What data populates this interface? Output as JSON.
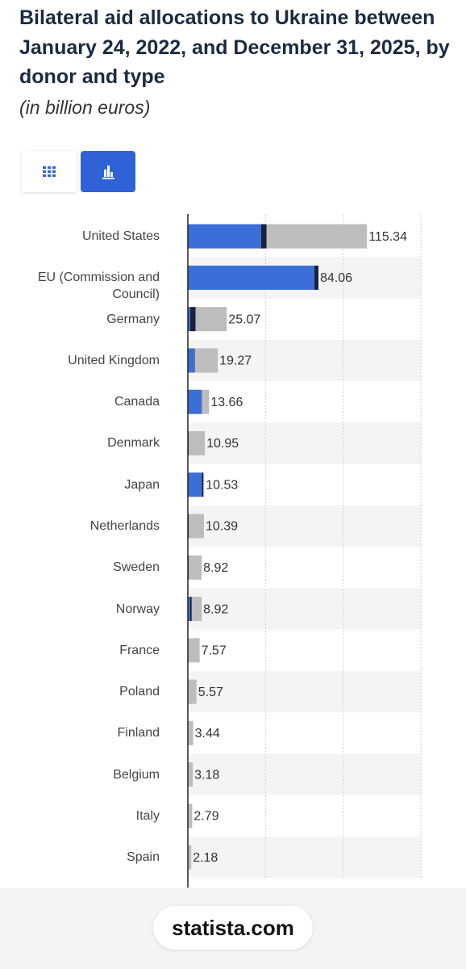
{
  "chart_data": {
    "type": "stacked-bar",
    "orientation": "horizontal",
    "title": "Bilateral aid allocations to Ukraine between January 24, 2022, and December 31, 2025, by donor and type",
    "subtitle": "(in billion euros)",
    "categories": [
      "United States",
      "EU (Commission and Council)",
      "Germany",
      "United Kingdom",
      "Canada",
      "Denmark",
      "Japan",
      "Netherlands",
      "Sweden",
      "Norway",
      "France",
      "Poland",
      "Finland",
      "Belgium",
      "Italy",
      "Spain"
    ],
    "series": [
      {
        "color": "#3b6fd8",
        "values": [
          47.1,
          81.5,
          1.5,
          4.1,
          8.8,
          0,
          9.0,
          0,
          0,
          1.5,
          0,
          0,
          0,
          0,
          0,
          0
        ]
      },
      {
        "color": "#17223b",
        "values": [
          3.6,
          2.56,
          3.5,
          0.3,
          0.2,
          0.5,
          1.0,
          0.6,
          0.5,
          1.0,
          0.4,
          0.3,
          0.3,
          0.3,
          0.3,
          0.2
        ]
      },
      {
        "color": "#bdbdbd",
        "values": [
          64.64,
          0,
          20.07,
          14.87,
          4.66,
          10.45,
          0.53,
          9.79,
          8.42,
          6.42,
          7.17,
          5.27,
          3.14,
          2.88,
          2.49,
          1.98
        ]
      }
    ],
    "totals": [
      115.34,
      84.06,
      25.07,
      19.27,
      13.66,
      10.95,
      10.53,
      10.39,
      8.92,
      8.92,
      7.57,
      5.57,
      3.44,
      3.18,
      2.79,
      2.18
    ],
    "xlim": [
      0,
      150
    ],
    "xticks": [
      0,
      50,
      100,
      150
    ],
    "grid": true
  },
  "footer": {
    "source": "statista.com"
  }
}
